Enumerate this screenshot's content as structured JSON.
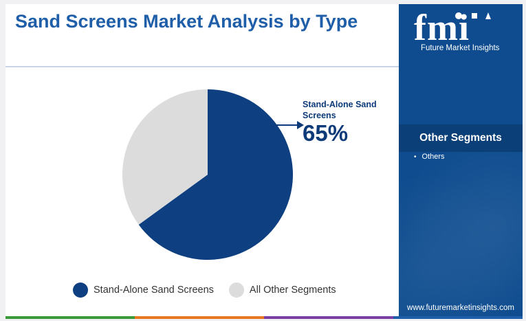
{
  "title": "Sand Screens Market Analysis by Type",
  "callout": {
    "label": "Stand-Alone Sand Screens",
    "value": "65%"
  },
  "colors": {
    "primary_series": "#0e3f80",
    "secondary_series": "#dcdcdc",
    "brand_blue": "#1f5ea8",
    "side_panel": "#0e4c8f"
  },
  "chart_data": {
    "type": "pie",
    "title": "Sand Screens Market Analysis by Type",
    "categories": [
      "Stand-Alone Sand Screens",
      "All Other Segments"
    ],
    "values": [
      65,
      35
    ],
    "unit": "%",
    "data_labels": [
      "65%"
    ],
    "legend": "bottom"
  },
  "legend": {
    "items": [
      {
        "label": "Stand-Alone Sand Screens",
        "color": "#0e3f80"
      },
      {
        "label": "All Other Segments",
        "color": "#dcdcdc"
      }
    ]
  },
  "side_panel": {
    "logo_text": "fmi",
    "logo_subtitle": "Future Market Insights",
    "segments_title": "Other Segments",
    "segments": [
      "Others"
    ],
    "website": "www.futuremarketinsights.com"
  },
  "bottom_bar_colors": [
    "#3a9a3a",
    "#e87722",
    "#7a3fa0",
    "#1f5ea8"
  ]
}
